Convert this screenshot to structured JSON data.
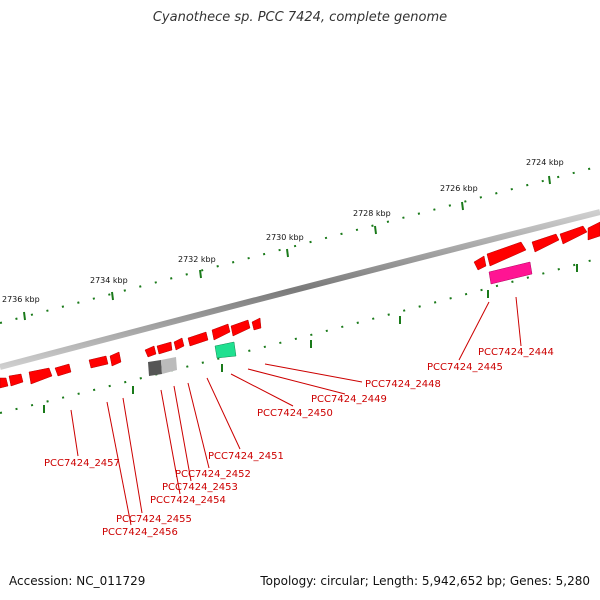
{
  "title": "Cyanothece sp. PCC 7424, complete genome",
  "footer": {
    "accession": "Accession: NC_011729",
    "topology": "Topology: circular; Length: 5,942,652 bp; Genes: 5,280"
  },
  "colors": {
    "gene_forward": "#ff0000",
    "gene_highlight_pink": "#ff1493",
    "gene_highlight_green": "#20e090",
    "gene_gray_dark": "#555555",
    "gene_gray_light": "#bbbbbb",
    "tick": "#1a7a1a",
    "label": "#cc0000",
    "backbone": "#888888"
  },
  "ruler_labels": [
    "2724 kbp",
    "2726 kbp",
    "2728 kbp",
    "2730 kbp",
    "2732 kbp",
    "2734 kbp",
    "2736 kbp"
  ],
  "gene_labels": [
    "PCC7424_2444",
    "PCC7424_2445",
    "PCC7424_2448",
    "PCC7424_2449",
    "PCC7424_2450",
    "PCC7424_2451",
    "PCC7424_2452",
    "PCC7424_2453",
    "PCC7424_2454",
    "PCC7424_2455",
    "PCC7424_2456",
    "PCC7424_2457"
  ]
}
